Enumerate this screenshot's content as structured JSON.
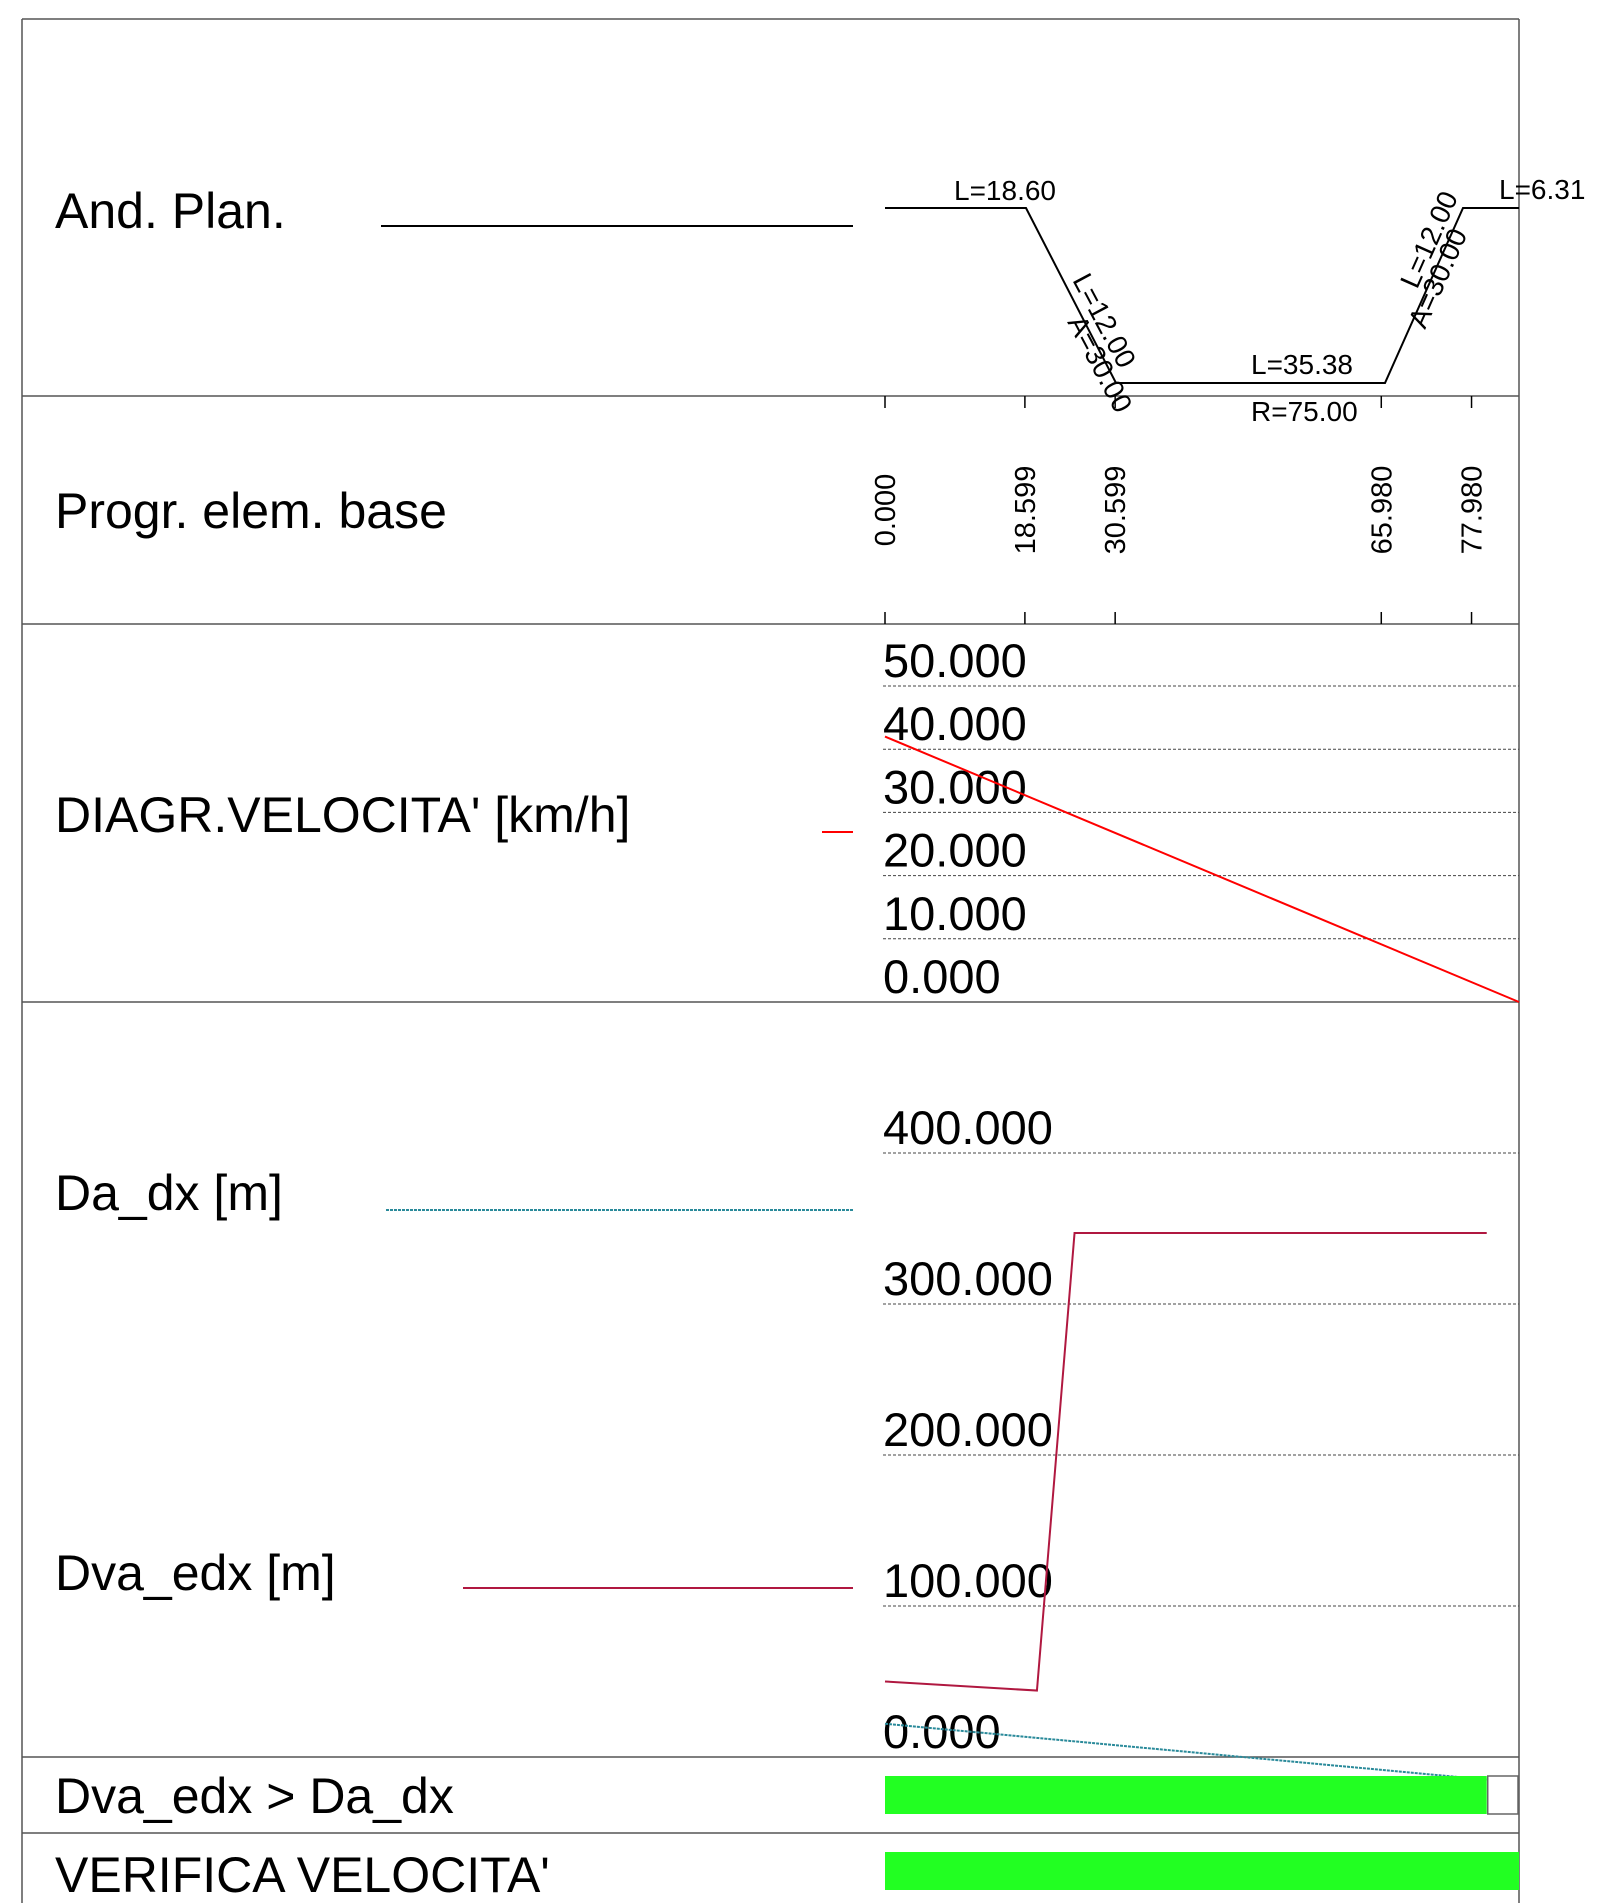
{
  "rows": {
    "plan_label": "And. Plan.",
    "progr_label": "Progr. elem. base",
    "speed_label": "DIAGR.VELOCITA' [km/h]",
    "da_label": "Da_dx [m]",
    "dva_label": "Dva_edx [m]",
    "check1_label": "Dva_edx > Da_dx",
    "check2_label": "VERIFICA VELOCITA'"
  },
  "plan_annotations": {
    "l1": "L=18.60",
    "l2": "L=12.00",
    "a2": "A=30.00",
    "l3": "L=35.38",
    "r3": "R=75.00",
    "l4": "L=12.00",
    "a4": "A=30.00",
    "l5": "L=6.31"
  },
  "colors": {
    "speed": "#ff0000",
    "da_dx": "#2a8a9a",
    "dva_edx": "#b01840",
    "ok_bar": "#22ff22",
    "frame": "#555555"
  },
  "chart_data": [
    {
      "type": "line",
      "title": "DIAGR.VELOCITA' [km/h]",
      "xlabel": "Progr. elem. base",
      "ylabel": "",
      "xlim": [
        0,
        84.29
      ],
      "ylim": [
        0,
        50
      ],
      "x_ticks": [
        "0.000",
        "18.599",
        "30.599",
        "65.980",
        "77.980"
      ],
      "y_ticks": [
        "50.000",
        "40.000",
        "30.000",
        "20.000",
        "10.000",
        "0.000"
      ],
      "grid": true,
      "series": [
        {
          "x": [
            0,
            84.29
          ],
          "y": [
            42,
            0
          ]
        }
      ]
    },
    {
      "type": "line",
      "title": "",
      "xlabel": "Progr. elem. base",
      "ylabel": "",
      "xlim": [
        0,
        84.29
      ],
      "ylim": [
        0,
        400
      ],
      "y_ticks": [
        "400.000",
        "300.000",
        "200.000",
        "100.000",
        "0.000"
      ],
      "grid": true,
      "series": [
        {
          "name": "Da_dx [m]",
          "x": [
            0,
            80
          ],
          "y": [
            22,
            -15
          ]
        },
        {
          "name": "Dva_edx [m]",
          "x": [
            0,
            20.2,
            25.2,
            80
          ],
          "y": [
            50,
            44,
            347,
            347
          ]
        }
      ]
    },
    {
      "type": "bar",
      "title": "Dva_edx > Da_dx",
      "xlim": [
        0,
        84.29
      ],
      "segments": [
        {
          "from": 0,
          "to": 80,
          "ok": true
        },
        {
          "from": 80,
          "to": 84.29,
          "ok": false
        }
      ]
    },
    {
      "type": "bar",
      "title": "VERIFICA VELOCITA'",
      "xlim": [
        0,
        84.29
      ],
      "segments": [
        {
          "from": 0,
          "to": 84.29,
          "ok": true
        }
      ]
    }
  ]
}
